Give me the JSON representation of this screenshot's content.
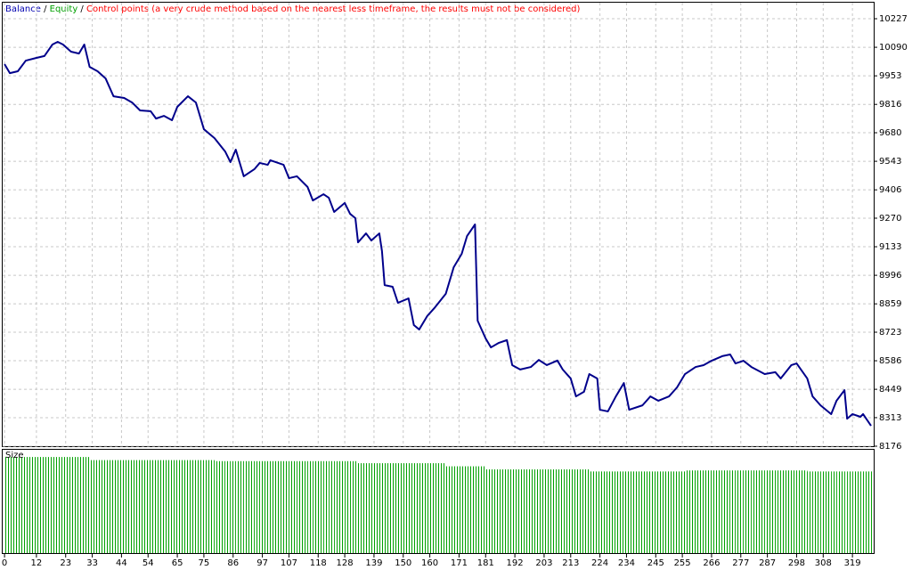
{
  "chart_data": [
    {
      "type": "line",
      "legend": [
        {
          "label": "Balance",
          "color": "#0000b0"
        },
        {
          "label": "Equity",
          "color": "#00a000"
        },
        {
          "label": "Control points (a very crude method based on the nearest less timeframe, the results must not be considered)",
          "color": "#ff0000"
        }
      ],
      "legend_separator": " / ",
      "x": [
        0,
        2,
        5,
        8,
        12,
        15,
        18,
        20,
        22,
        25,
        28,
        30,
        32,
        35,
        38,
        41,
        45,
        48,
        51,
        55,
        57,
        60,
        63,
        65,
        69,
        72,
        75,
        79,
        83,
        85,
        87,
        90,
        94,
        96,
        99,
        100,
        105,
        107,
        110,
        114,
        116,
        120,
        122,
        124,
        128,
        130,
        132,
        133,
        136,
        138,
        141,
        142,
        143,
        146,
        148,
        152,
        154,
        156,
        159,
        162,
        166,
        169,
        172,
        174,
        177,
        178,
        181,
        183,
        186,
        189,
        191,
        194,
        198,
        201,
        204,
        208,
        210,
        213,
        215,
        218,
        220,
        223,
        224,
        227,
        230,
        233,
        235,
        240,
        243,
        246,
        250,
        253,
        256,
        260,
        263,
        266,
        270,
        273,
        275,
        278,
        281,
        286,
        290,
        292,
        296,
        298,
        302,
        304,
        307,
        311,
        313,
        316,
        317,
        319,
        322,
        323,
        326
      ],
      "series": [
        {
          "name": "Balance",
          "color": "#00008b",
          "values": [
            10009,
            9966,
            9975,
            10026,
            10039,
            10048,
            10103,
            10116,
            10103,
            10069,
            10060,
            10103,
            9996,
            9975,
            9941,
            9855,
            9847,
            9825,
            9787,
            9783,
            9748,
            9761,
            9740,
            9804,
            9855,
            9825,
            9697,
            9654,
            9590,
            9539,
            9599,
            9471,
            9505,
            9535,
            9526,
            9548,
            9526,
            9462,
            9471,
            9420,
            9355,
            9385,
            9368,
            9300,
            9343,
            9291,
            9270,
            9154,
            9197,
            9163,
            9197,
            9112,
            8949,
            8941,
            8864,
            8885,
            8757,
            8736,
            8800,
            8843,
            8907,
            9035,
            9099,
            9184,
            9240,
            8778,
            8693,
            8650,
            8672,
            8685,
            8565,
            8544,
            8556,
            8590,
            8565,
            8587,
            8544,
            8501,
            8415,
            8437,
            8522,
            8501,
            8351,
            8343,
            8415,
            8479,
            8351,
            8372,
            8415,
            8394,
            8415,
            8458,
            8522,
            8556,
            8565,
            8586,
            8608,
            8616,
            8573,
            8586,
            8556,
            8522,
            8531,
            8501,
            8565,
            8573,
            8501,
            8415,
            8372,
            8330,
            8394,
            8445,
            8308,
            8330,
            8317,
            8330,
            8274
          ]
        }
      ],
      "xlim": [
        -0.7,
        327
      ],
      "xticks": [
        0,
        12,
        23,
        33,
        44,
        54,
        65,
        75,
        86,
        97,
        107,
        118,
        128,
        139,
        150,
        160,
        171,
        181,
        192,
        203,
        213,
        224,
        234,
        245,
        255,
        266,
        277,
        287,
        298,
        308,
        319
      ],
      "ylim": [
        8176,
        10304
      ],
      "yticks": [
        10227,
        10090,
        9953,
        9816,
        9680,
        9543,
        9406,
        9270,
        9133,
        8996,
        8859,
        8723,
        8586,
        8449,
        8313,
        8176
      ],
      "grid": true
    },
    {
      "type": "bar",
      "title": "Size",
      "color": "#00a000",
      "x": [
        0,
        2,
        5,
        8,
        12,
        15,
        18,
        20,
        22,
        25,
        28,
        30,
        32,
        35,
        38,
        41,
        45,
        48,
        51,
        55,
        57,
        60,
        63,
        65,
        69,
        72,
        75,
        79,
        83,
        85,
        87,
        90,
        94,
        96,
        99,
        100,
        105,
        107,
        110,
        114,
        116,
        120,
        122,
        124,
        128,
        130,
        132,
        133,
        136,
        138,
        141,
        142,
        143,
        146,
        148,
        152,
        154,
        156,
        159,
        162,
        166,
        169,
        172,
        174,
        177,
        178,
        181,
        183,
        186,
        189,
        191,
        194,
        198,
        201,
        204,
        208,
        210,
        213,
        215,
        218,
        220,
        223,
        224,
        227,
        230,
        233,
        235,
        240,
        243,
        246,
        250,
        253,
        256,
        260,
        263,
        266,
        270,
        273,
        275,
        278,
        281,
        286,
        290,
        292,
        296,
        298,
        302,
        304,
        307,
        311,
        313,
        316,
        317,
        319,
        322,
        323,
        326
      ],
      "values": [
        0.93,
        0.93,
        0.93,
        0.93,
        0.93,
        0.93,
        0.93,
        0.93,
        0.93,
        0.93,
        0.93,
        0.93,
        0.9,
        0.9,
        0.9,
        0.9,
        0.9,
        0.9,
        0.9,
        0.9,
        0.9,
        0.9,
        0.9,
        0.9,
        0.9,
        0.9,
        0.9,
        0.89,
        0.89,
        0.89,
        0.89,
        0.89,
        0.89,
        0.89,
        0.89,
        0.89,
        0.89,
        0.89,
        0.89,
        0.89,
        0.89,
        0.89,
        0.89,
        0.89,
        0.89,
        0.89,
        0.89,
        0.87,
        0.87,
        0.87,
        0.87,
        0.87,
        0.87,
        0.87,
        0.87,
        0.87,
        0.87,
        0.87,
        0.87,
        0.87,
        0.84,
        0.84,
        0.84,
        0.84,
        0.84,
        0.84,
        0.81,
        0.81,
        0.81,
        0.81,
        0.81,
        0.81,
        0.81,
        0.81,
        0.81,
        0.81,
        0.81,
        0.81,
        0.81,
        0.81,
        0.79,
        0.79,
        0.79,
        0.79,
        0.79,
        0.79,
        0.79,
        0.79,
        0.79,
        0.79,
        0.79,
        0.79,
        0.8,
        0.8,
        0.8,
        0.8,
        0.8,
        0.8,
        0.8,
        0.8,
        0.8,
        0.8,
        0.8,
        0.8,
        0.8,
        0.8,
        0.79,
        0.79,
        0.79,
        0.79,
        0.79,
        0.79,
        0.79,
        0.79,
        0.79,
        0.79,
        0.79
      ],
      "xlim": [
        -0.7,
        327
      ],
      "ylim": [
        0,
        1
      ]
    }
  ]
}
